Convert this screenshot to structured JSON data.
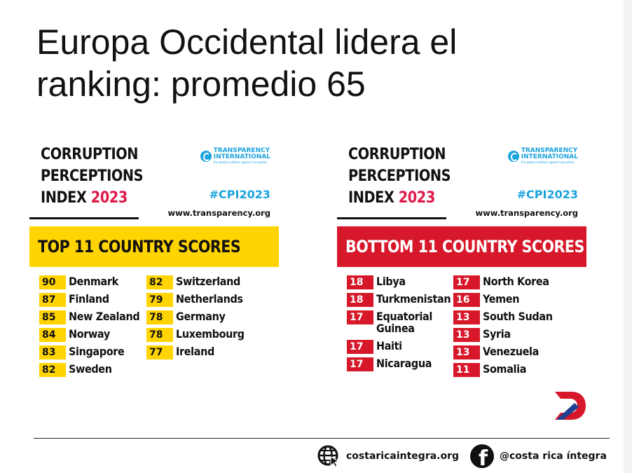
{
  "slide": {
    "title": "Europa Occidental lidera el ranking: promedio 65"
  },
  "panels": {
    "top": {
      "head_line1": "CORRUPTION",
      "head_line2": "PERCEPTIONS",
      "head_index": "INDEX",
      "head_year": "2023",
      "org_name_1": "TRANSPARENCY",
      "org_name_2": "INTERNATIONAL",
      "org_tagline": "the global coalition against corruption",
      "hashtag": "#CPI2023",
      "website": "www.transparency.org",
      "banner": "TOP 11 COUNTRY SCORES",
      "col1": [
        {
          "score": "90",
          "country": "Denmark"
        },
        {
          "score": "87",
          "country": "Finland"
        },
        {
          "score": "85",
          "country": "New Zealand"
        },
        {
          "score": "84",
          "country": "Norway"
        },
        {
          "score": "83",
          "country": "Singapore"
        },
        {
          "score": "82",
          "country": "Sweden"
        }
      ],
      "col2": [
        {
          "score": "82",
          "country": "Switzerland"
        },
        {
          "score": "79",
          "country": "Netherlands"
        },
        {
          "score": "78",
          "country": "Germany"
        },
        {
          "score": "78",
          "country": "Luxembourg"
        },
        {
          "score": "77",
          "country": "Ireland"
        }
      ]
    },
    "bottom": {
      "head_line1": "CORRUPTION",
      "head_line2": "PERCEPTIONS",
      "head_index": "INDEX",
      "head_year": "2023",
      "org_name_1": "TRANSPARENCY",
      "org_name_2": "INTERNATIONAL",
      "org_tagline": "the global coalition against corruption",
      "hashtag": "#CPI2023",
      "website": "www.transparency.org",
      "banner": "BOTTOM 11 COUNTRY SCORES",
      "col1": [
        {
          "score": "18",
          "country": "Libya"
        },
        {
          "score": "18",
          "country": "Turkmenistan"
        },
        {
          "score": "17",
          "country": "Equatorial\nGuinea"
        },
        {
          "score": "17",
          "country": "Haiti"
        },
        {
          "score": "17",
          "country": "Nicaragua"
        }
      ],
      "col2": [
        {
          "score": "17",
          "country": "North Korea"
        },
        {
          "score": "16",
          "country": "Yemen"
        },
        {
          "score": "13",
          "country": "South Sudan"
        },
        {
          "score": "13",
          "country": "Syria"
        },
        {
          "score": "13",
          "country": "Venezuela"
        },
        {
          "score": "11",
          "country": "Somalia"
        }
      ]
    }
  },
  "footer": {
    "website": "costaricaintegra.org",
    "facebook": "@costa rica íntegra",
    "website_icon": "globe-cursor-icon",
    "facebook_icon": "facebook-icon"
  },
  "colors": {
    "accent_yellow": "#ffd400",
    "accent_red": "#d7182a",
    "year_pink": "#e0194a",
    "ti_blue": "#1aa3dd"
  }
}
